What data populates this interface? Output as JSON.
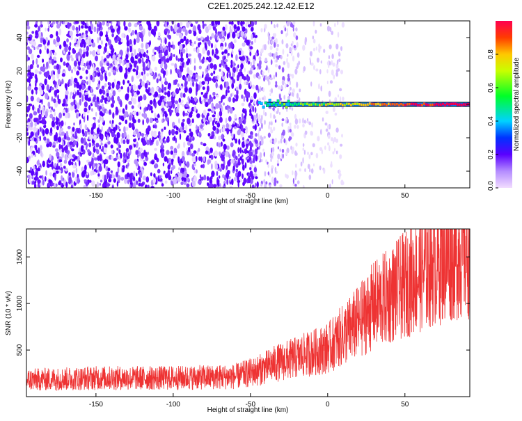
{
  "title": "C2E1.2025.242.12.42.E12",
  "chart_data": [
    {
      "type": "heatmap",
      "title": "C2E1.2025.242.12.42.E12",
      "xlabel": "Height of straight line (km)",
      "ylabel": "Frequency (Hz)",
      "xlim": [
        -195,
        92
      ],
      "ylim": [
        -50,
        50
      ],
      "x_ticks": [
        -150,
        -100,
        -50,
        0,
        50
      ],
      "y_ticks": [
        -40,
        -20,
        0,
        20,
        40
      ],
      "colorbar": {
        "label": "Normalized spectral amplitude",
        "range": [
          0.0,
          1.0
        ],
        "ticks": [
          0.0,
          0.2,
          0.4,
          0.6,
          0.8
        ]
      },
      "signal_line": {
        "x_start": -45,
        "x_end": 92,
        "frequency_hz": 0
      }
    },
    {
      "type": "line",
      "xlabel": "Height of straight line (km)",
      "ylabel": "SNR (10 * v/v)",
      "xlim": [
        -195,
        92
      ],
      "ylim": [
        0,
        1800
      ],
      "x_ticks": [
        -150,
        -100,
        -50,
        0,
        50
      ],
      "y_ticks": [
        500,
        1000,
        1500
      ],
      "color": "#ee3333",
      "series": [
        {
          "name": "SNR",
          "x": [
            -195,
            -150,
            -100,
            -60,
            -45,
            -35,
            -20,
            -10,
            0,
            10,
            20,
            30,
            40,
            50,
            60,
            70,
            80,
            92
          ],
          "y": [
            180,
            200,
            200,
            215,
            280,
            350,
            420,
            470,
            520,
            660,
            800,
            980,
            1080,
            1200,
            1320,
            1440,
            1520,
            1580
          ]
        }
      ]
    }
  ]
}
